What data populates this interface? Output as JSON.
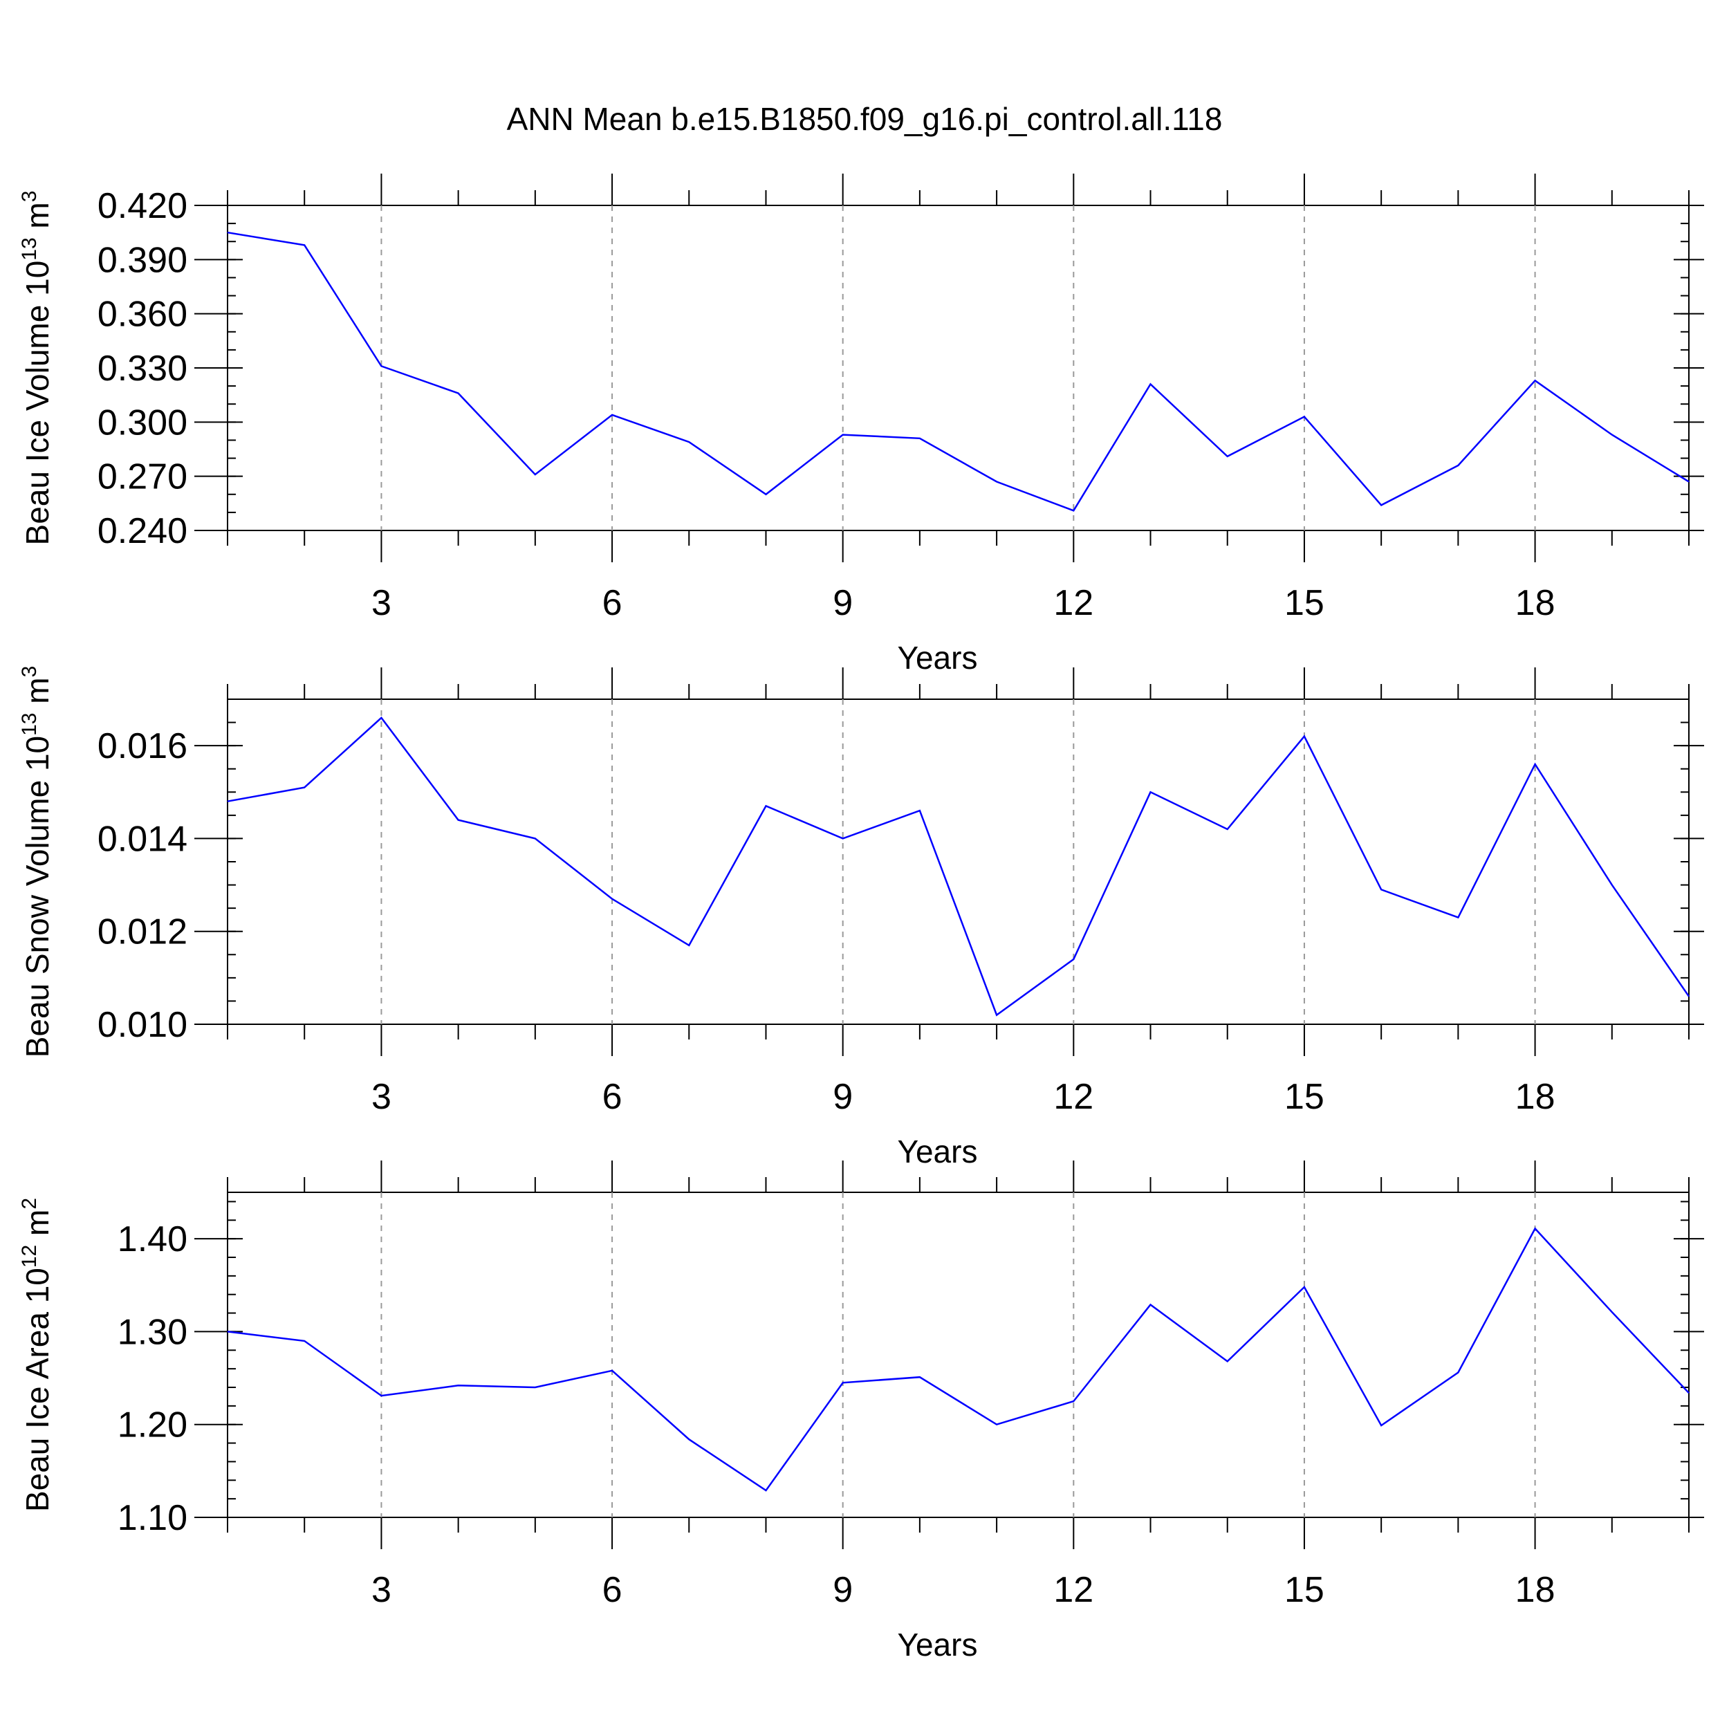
{
  "figure": {
    "title": "ANN Mean b.e15.B1850.f09_g16.pi_control.all.118"
  },
  "chart_data": [
    {
      "type": "line",
      "ylabel_main": "Beau Ice Volume 10",
      "ylabel_sup": "13",
      "ylabel_unit": " m",
      "ylabel_unit_sup": "3",
      "xlabel": "Years",
      "xlim": [
        1,
        20
      ],
      "ylim": [
        0.24,
        0.42
      ],
      "xticks": [
        3,
        6,
        9,
        12,
        15,
        18
      ],
      "yticks": [
        "0.240",
        "0.270",
        "0.300",
        "0.330",
        "0.360",
        "0.390",
        "0.420"
      ],
      "ytick_values": [
        0.24,
        0.27,
        0.3,
        0.33,
        0.36,
        0.39,
        0.42
      ],
      "yminor_step": 0.01,
      "grid": "dashed vertical at major x ticks",
      "line_color": "#0000ff",
      "x": [
        1,
        2,
        3,
        4,
        5,
        6,
        7,
        8,
        9,
        10,
        11,
        12,
        13,
        14,
        15,
        16,
        17,
        18,
        19,
        20
      ],
      "values": [
        0.405,
        0.398,
        0.331,
        0.316,
        0.271,
        0.304,
        0.289,
        0.26,
        0.293,
        0.291,
        0.267,
        0.251,
        0.321,
        0.281,
        0.303,
        0.254,
        0.276,
        0.323,
        0.293,
        0.267
      ]
    },
    {
      "type": "line",
      "ylabel_main": "Beau Snow Volume 10",
      "ylabel_sup": "13",
      "ylabel_unit": " m",
      "ylabel_unit_sup": "3",
      "xlabel": "Years",
      "xlim": [
        1,
        20
      ],
      "ylim": [
        0.01,
        0.017
      ],
      "xticks": [
        3,
        6,
        9,
        12,
        15,
        18
      ],
      "yticks": [
        "0.010",
        "0.012",
        "0.014",
        "0.016"
      ],
      "ytick_values": [
        0.01,
        0.012,
        0.014,
        0.016
      ],
      "yminor_step": 0.0005,
      "grid": "dashed vertical at major x ticks",
      "line_color": "#0000ff",
      "x": [
        1,
        2,
        3,
        4,
        5,
        6,
        7,
        8,
        9,
        10,
        11,
        12,
        13,
        14,
        15,
        16,
        17,
        18,
        19,
        20
      ],
      "values": [
        0.0148,
        0.0151,
        0.0166,
        0.0144,
        0.014,
        0.0127,
        0.0117,
        0.0147,
        0.014,
        0.0146,
        0.0102,
        0.0114,
        0.015,
        0.0142,
        0.0162,
        0.0129,
        0.0123,
        0.0156,
        0.013,
        0.0106
      ]
    },
    {
      "type": "line",
      "ylabel_main": "Beau Ice Area 10",
      "ylabel_sup": "12",
      "ylabel_unit": " m",
      "ylabel_unit_sup": "2",
      "xlabel": "Years",
      "xlim": [
        1,
        20
      ],
      "ylim": [
        1.1,
        1.45
      ],
      "xticks": [
        3,
        6,
        9,
        12,
        15,
        18
      ],
      "yticks": [
        "1.10",
        "1.20",
        "1.30",
        "1.40"
      ],
      "ytick_values": [
        1.1,
        1.2,
        1.3,
        1.4
      ],
      "yminor_step": 0.02,
      "grid": "dashed vertical at major x ticks",
      "line_color": "#0000ff",
      "x": [
        1,
        2,
        3,
        4,
        5,
        6,
        7,
        8,
        9,
        10,
        11,
        12,
        13,
        14,
        15,
        16,
        17,
        18,
        19,
        20
      ],
      "values": [
        1.3,
        1.29,
        1.231,
        1.242,
        1.24,
        1.258,
        1.184,
        1.129,
        1.245,
        1.251,
        1.2,
        1.225,
        1.329,
        1.268,
        1.348,
        1.199,
        1.256,
        1.411,
        1.321,
        1.234
      ]
    }
  ]
}
